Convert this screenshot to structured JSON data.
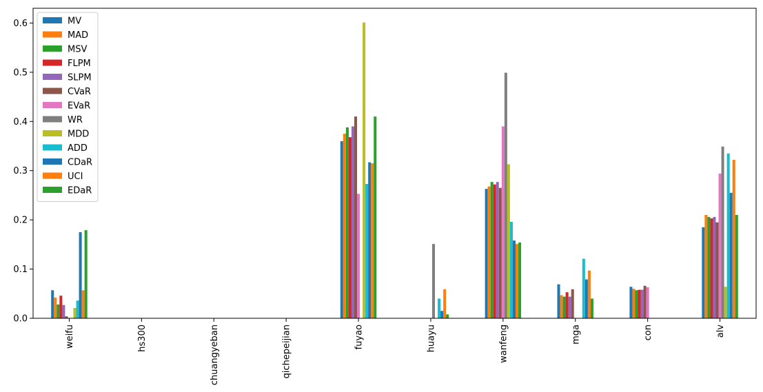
{
  "chart_data": {
    "type": "bar",
    "categories": [
      "weifu",
      "hs300",
      "chuangyeban",
      "qichepeijian",
      "fuyao",
      "huayu",
      "wanfeng",
      "mga",
      "con",
      "alv"
    ],
    "ylim": [
      0,
      0.63
    ],
    "yticks": [
      "0.0",
      "0.1",
      "0.2",
      "0.3",
      "0.4",
      "0.5",
      "0.6"
    ],
    "ytick_values": [
      0,
      0.1,
      0.2,
      0.3,
      0.4,
      0.5,
      0.6
    ],
    "legend_position": "upper-left",
    "grid": false,
    "series": [
      {
        "name": "MV",
        "color": "#1f77b4",
        "values": [
          0.057,
          0,
          0,
          0,
          0.36,
          0,
          0.263,
          0.069,
          0.064,
          0.185
        ]
      },
      {
        "name": "MAD",
        "color": "#ff7f0e",
        "values": [
          0.042,
          0,
          0,
          0,
          0.375,
          0,
          0.268,
          0.047,
          0.06,
          0.21
        ]
      },
      {
        "name": "MSV",
        "color": "#2ca02c",
        "values": [
          0.028,
          0,
          0,
          0,
          0.388,
          0,
          0.277,
          0.044,
          0.057,
          0.206
        ]
      },
      {
        "name": "FLPM",
        "color": "#d62728",
        "values": [
          0.046,
          0,
          0,
          0,
          0.368,
          0,
          0.272,
          0.053,
          0.058,
          0.203
        ]
      },
      {
        "name": "SLPM",
        "color": "#9467bd",
        "values": [
          0.027,
          0,
          0,
          0,
          0.39,
          0,
          0.277,
          0.044,
          0.058,
          0.206
        ]
      },
      {
        "name": "CVaR",
        "color": "#8c564b",
        "values": [
          0.004,
          0,
          0,
          0,
          0.41,
          0,
          0.265,
          0.059,
          0.066,
          0.195
        ]
      },
      {
        "name": "EVaR",
        "color": "#e377c2",
        "values": [
          0,
          0,
          0,
          0,
          0.253,
          0,
          0.39,
          0,
          0.063,
          0.294
        ]
      },
      {
        "name": "WR",
        "color": "#7f7f7f",
        "values": [
          0,
          0,
          0,
          0,
          0,
          0.151,
          0.499,
          0,
          0,
          0.349
        ]
      },
      {
        "name": "MDD",
        "color": "#bcbd22",
        "values": [
          0.021,
          0,
          0,
          0,
          0.601,
          0,
          0.313,
          0,
          0,
          0.064
        ]
      },
      {
        "name": "ADD",
        "color": "#17becf",
        "values": [
          0.036,
          0,
          0,
          0,
          0.273,
          0.04,
          0.196,
          0.121,
          0,
          0.335
        ]
      },
      {
        "name": "CDaR",
        "color": "#1f77b4",
        "values": [
          0.175,
          0,
          0,
          0,
          0.317,
          0.015,
          0.158,
          0.079,
          0,
          0.255
        ]
      },
      {
        "name": "UCI",
        "color": "#ff7f0e",
        "values": [
          0.057,
          0,
          0,
          0,
          0.315,
          0.059,
          0.151,
          0.097,
          0,
          0.322
        ]
      },
      {
        "name": "EDaR",
        "color": "#2ca02c",
        "values": [
          0.179,
          0,
          0,
          0,
          0.41,
          0.008,
          0.154,
          0.04,
          0,
          0.21
        ]
      }
    ]
  }
}
